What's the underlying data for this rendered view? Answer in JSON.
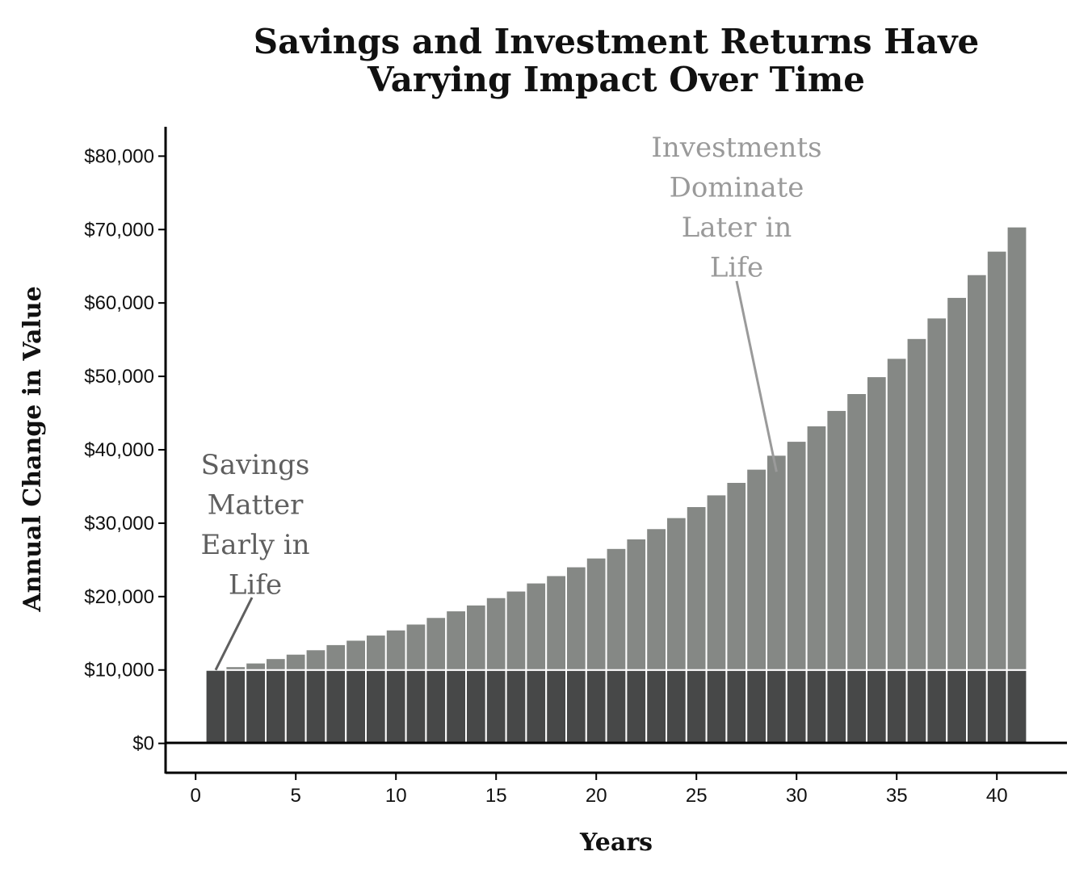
{
  "chart_data": {
    "type": "bar",
    "stacked": true,
    "title": "Savings and Investment Returns Have Varying Impact Over Time",
    "title_lines": [
      "Savings and Investment Returns Have",
      "Varying Impact Over Time"
    ],
    "xlabel": "Years",
    "ylabel": "Annual Change in Value",
    "xlim": [
      -1.5,
      43.5
    ],
    "ylim": [
      -4000,
      84000
    ],
    "x_ticks": [
      0,
      5,
      10,
      15,
      20,
      25,
      30,
      35,
      40
    ],
    "x_tick_labels": [
      "0",
      "5",
      "10",
      "15",
      "20",
      "25",
      "30",
      "35",
      "40"
    ],
    "y_ticks": [
      0,
      10000,
      20000,
      30000,
      40000,
      50000,
      60000,
      70000,
      80000
    ],
    "y_tick_labels": [
      "$0",
      "$10,000",
      "$20,000",
      "$30,000",
      "$40,000",
      "$50,000",
      "$60,000",
      "$70,000",
      "$80,000"
    ],
    "grid": false,
    "legend": "none",
    "x": [
      1,
      2,
      3,
      4,
      5,
      6,
      7,
      8,
      9,
      10,
      11,
      12,
      13,
      14,
      15,
      16,
      17,
      18,
      19,
      20,
      21,
      22,
      23,
      24,
      25,
      26,
      27,
      28,
      29,
      30,
      31,
      32,
      33,
      34,
      35,
      36,
      37,
      38,
      39,
      40,
      41
    ],
    "series": [
      {
        "color": "#474848",
        "values": [
          10000,
          10000,
          10000,
          10000,
          10000,
          10000,
          10000,
          10000,
          10000,
          10000,
          10000,
          10000,
          10000,
          10000,
          10000,
          10000,
          10000,
          10000,
          10000,
          10000,
          10000,
          10000,
          10000,
          10000,
          10000,
          10000,
          10000,
          10000,
          10000,
          10000,
          10000,
          10000,
          10000,
          10000,
          10000,
          10000,
          10000,
          10000,
          10000,
          10000,
          10000
        ]
      },
      {
        "color": "#858885",
        "values": [
          0,
          500,
          1000,
          1600,
          2200,
          2800,
          3500,
          4100,
          4800,
          5500,
          6300,
          7200,
          8100,
          8900,
          9900,
          10800,
          11900,
          12900,
          14100,
          15300,
          16600,
          17900,
          19300,
          20800,
          22300,
          23900,
          25600,
          27400,
          29300,
          31200,
          33300,
          35400,
          37700,
          40000,
          42500,
          45200,
          48000,
          50800,
          53900,
          57100,
          60400
        ]
      }
    ],
    "annotations": [
      {
        "lines": [
          "Savings",
          "Matter",
          "Early in",
          "Life"
        ],
        "color": "#5f5f5f",
        "points_to": {
          "x": 1,
          "y": 10000
        }
      },
      {
        "lines": [
          "Investments",
          "Dominate",
          "Later in",
          "Life"
        ],
        "color": "#9a9a9a",
        "points_to": {
          "x": 29,
          "y": 37000
        }
      }
    ]
  }
}
